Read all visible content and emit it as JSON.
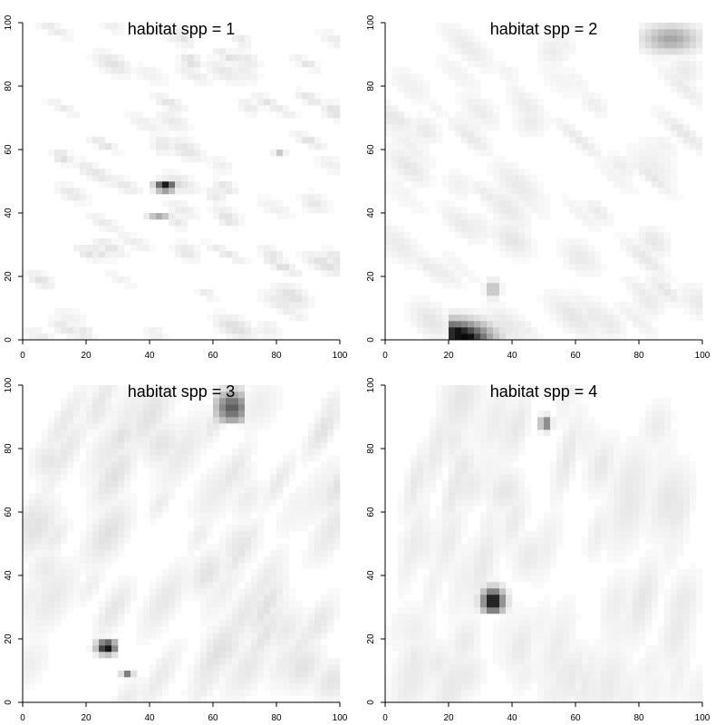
{
  "chart_data": [
    {
      "type": "heatmap",
      "title": "habitat spp = 1",
      "xlim": [
        0,
        100
      ],
      "ylim": [
        0,
        100
      ],
      "x_ticks": [
        0,
        20,
        40,
        60,
        80,
        100
      ],
      "y_ticks": [
        0,
        20,
        40,
        60,
        80,
        100
      ],
      "grid": false,
      "colormap": "white-to-black",
      "base_texture": {
        "intensity": 0.14,
        "blob_scale": 5,
        "orientation_deg": -25,
        "seed": 11
      },
      "hotspots": [
        {
          "x": 45,
          "y": 48.5,
          "rx": 3.5,
          "ry": 1.8,
          "intensity": 1.0,
          "shape": "ellipse"
        },
        {
          "x": 43,
          "y": 39.5,
          "rx": 4,
          "ry": 0.7,
          "intensity": 0.65,
          "shape": "ellipse"
        },
        {
          "x": 81,
          "y": 59.5,
          "rx": 2,
          "ry": 0.6,
          "intensity": 0.55,
          "shape": "ellipse"
        }
      ]
    },
    {
      "type": "heatmap",
      "title": "habitat spp = 2",
      "xlim": [
        0,
        100
      ],
      "ylim": [
        0,
        100
      ],
      "x_ticks": [
        0,
        20,
        40,
        60,
        80,
        100
      ],
      "y_ticks": [
        0,
        20,
        40,
        60,
        80,
        100
      ],
      "grid": false,
      "colormap": "white-to-black",
      "base_texture": {
        "intensity": 0.1,
        "blob_scale": 8,
        "orientation_deg": -40,
        "seed": 23
      },
      "hotspots": [
        {
          "x": 25,
          "y": 2,
          "rx": 9,
          "ry": 6,
          "intensity": 1.0,
          "shape": "wedge",
          "clip": [
            20,
            40,
            0,
            14
          ]
        },
        {
          "x": 34,
          "y": 16,
          "rx": 2.5,
          "ry": 3,
          "intensity": 0.3,
          "shape": "ellipse"
        },
        {
          "x": 90,
          "y": 95,
          "rx": 10,
          "ry": 5,
          "intensity": 0.35,
          "shape": "ellipse",
          "clip": [
            80,
            100,
            90,
            100
          ]
        }
      ]
    },
    {
      "type": "heatmap",
      "title": "habitat spp = 3",
      "xlim": [
        0,
        100
      ],
      "ylim": [
        0,
        100
      ],
      "x_ticks": [
        0,
        20,
        40,
        60,
        80,
        100
      ],
      "y_ticks": [
        0,
        20,
        40,
        60,
        80,
        100
      ],
      "grid": false,
      "colormap": "white-to-black",
      "base_texture": {
        "intensity": 0.12,
        "blob_scale": 10,
        "orientation_deg": 60,
        "seed": 37
      },
      "hotspots": [
        {
          "x": 26.5,
          "y": 17.5,
          "rx": 3.5,
          "ry": 2.5,
          "intensity": 1.0,
          "shape": "ellipse",
          "clip": [
            20,
            30,
            9,
            20
          ]
        },
        {
          "x": 33,
          "y": 9,
          "rx": 2,
          "ry": 0.5,
          "intensity": 0.5,
          "shape": "ellipse"
        },
        {
          "x": 66,
          "y": 93,
          "rx": 6,
          "ry": 6,
          "intensity": 0.65,
          "shape": "ellipse",
          "clip": [
            60,
            70,
            89,
            100
          ]
        }
      ]
    },
    {
      "type": "heatmap",
      "title": "habitat spp = 4",
      "xlim": [
        0,
        100
      ],
      "ylim": [
        0,
        100
      ],
      "x_ticks": [
        0,
        20,
        40,
        60,
        80,
        100
      ],
      "y_ticks": [
        0,
        20,
        40,
        60,
        80,
        100
      ],
      "grid": false,
      "colormap": "white-to-black",
      "base_texture": {
        "intensity": 0.1,
        "blob_scale": 11,
        "orientation_deg": 75,
        "seed": 53
      },
      "hotspots": [
        {
          "x": 34,
          "y": 32,
          "rx": 4,
          "ry": 4.5,
          "intensity": 1.0,
          "shape": "ellipse",
          "clip": [
            29,
            39,
            29,
            40
          ]
        },
        {
          "x": 50.5,
          "y": 88,
          "rx": 2,
          "ry": 2.5,
          "intensity": 0.6,
          "shape": "ellipse",
          "clip": [
            49,
            53,
            79,
            91
          ]
        }
      ]
    }
  ]
}
